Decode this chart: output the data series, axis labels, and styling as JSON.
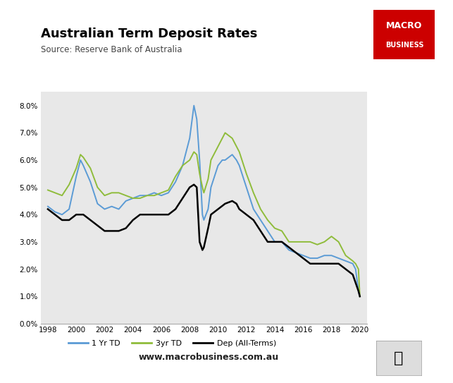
{
  "title": "Australian Term Deposit Rates",
  "subtitle": "Source: Reserve Bank of Australia",
  "watermark": "www.macrobusiness.com.au",
  "title_fontsize": 13,
  "subtitle_fontsize": 8.5,
  "bg_color": "#e8e8e8",
  "fig_bg_color": "#ffffff",
  "line_colors": {
    "1yr": "#5b9bd5",
    "3yr": "#8fbc3b",
    "dep": "#000000"
  },
  "legend_labels": [
    "1 Yr TD",
    "3yr TD",
    "Dep (All-Terms)"
  ],
  "ylim": [
    0.0,
    0.085
  ],
  "yticks": [
    0.0,
    0.01,
    0.02,
    0.03,
    0.04,
    0.05,
    0.06,
    0.07,
    0.08
  ],
  "ytick_labels": [
    "0.0%",
    "1.0%",
    "2.0%",
    "3.0%",
    "4.0%",
    "5.0%",
    "6.0%",
    "7.0%",
    "8.0%"
  ],
  "xticks": [
    1998,
    2000,
    2002,
    2004,
    2006,
    2008,
    2010,
    2012,
    2014,
    2016,
    2018,
    2020
  ],
  "xlim": [
    1997.5,
    2020.5
  ],
  "macro_box_color": "#cc0000",
  "macro_text_color": "#ffffff",
  "data_1yr": [
    [
      1998.0,
      0.043
    ],
    [
      1998.5,
      0.041
    ],
    [
      1999.0,
      0.04
    ],
    [
      1999.5,
      0.042
    ],
    [
      2000.0,
      0.054
    ],
    [
      2000.3,
      0.06
    ],
    [
      2000.5,
      0.058
    ],
    [
      2001.0,
      0.052
    ],
    [
      2001.5,
      0.044
    ],
    [
      2002.0,
      0.042
    ],
    [
      2002.5,
      0.043
    ],
    [
      2003.0,
      0.042
    ],
    [
      2003.5,
      0.045
    ],
    [
      2004.0,
      0.046
    ],
    [
      2004.5,
      0.047
    ],
    [
      2005.0,
      0.047
    ],
    [
      2005.5,
      0.048
    ],
    [
      2006.0,
      0.047
    ],
    [
      2006.5,
      0.048
    ],
    [
      2007.0,
      0.052
    ],
    [
      2007.5,
      0.058
    ],
    [
      2008.0,
      0.068
    ],
    [
      2008.3,
      0.08
    ],
    [
      2008.5,
      0.075
    ],
    [
      2008.7,
      0.06
    ],
    [
      2008.9,
      0.04
    ],
    [
      2009.0,
      0.038
    ],
    [
      2009.3,
      0.042
    ],
    [
      2009.5,
      0.05
    ],
    [
      2010.0,
      0.058
    ],
    [
      2010.3,
      0.06
    ],
    [
      2010.5,
      0.06
    ],
    [
      2011.0,
      0.062
    ],
    [
      2011.3,
      0.06
    ],
    [
      2011.5,
      0.058
    ],
    [
      2012.0,
      0.05
    ],
    [
      2012.5,
      0.042
    ],
    [
      2013.0,
      0.038
    ],
    [
      2013.5,
      0.034
    ],
    [
      2014.0,
      0.03
    ],
    [
      2014.5,
      0.03
    ],
    [
      2015.0,
      0.027
    ],
    [
      2015.5,
      0.026
    ],
    [
      2016.0,
      0.025
    ],
    [
      2016.5,
      0.024
    ],
    [
      2017.0,
      0.024
    ],
    [
      2017.5,
      0.025
    ],
    [
      2018.0,
      0.025
    ],
    [
      2018.5,
      0.024
    ],
    [
      2019.0,
      0.023
    ],
    [
      2019.5,
      0.022
    ],
    [
      2019.7,
      0.02
    ],
    [
      2019.9,
      0.012
    ],
    [
      2020.0,
      0.01
    ]
  ],
  "data_3yr": [
    [
      1998.0,
      0.049
    ],
    [
      1998.5,
      0.048
    ],
    [
      1999.0,
      0.047
    ],
    [
      1999.5,
      0.051
    ],
    [
      2000.0,
      0.057
    ],
    [
      2000.3,
      0.062
    ],
    [
      2000.5,
      0.061
    ],
    [
      2001.0,
      0.057
    ],
    [
      2001.5,
      0.05
    ],
    [
      2002.0,
      0.047
    ],
    [
      2002.5,
      0.048
    ],
    [
      2003.0,
      0.048
    ],
    [
      2003.5,
      0.047
    ],
    [
      2004.0,
      0.046
    ],
    [
      2004.5,
      0.046
    ],
    [
      2005.0,
      0.047
    ],
    [
      2005.5,
      0.047
    ],
    [
      2006.0,
      0.048
    ],
    [
      2006.5,
      0.049
    ],
    [
      2007.0,
      0.054
    ],
    [
      2007.5,
      0.058
    ],
    [
      2008.0,
      0.06
    ],
    [
      2008.3,
      0.063
    ],
    [
      2008.5,
      0.062
    ],
    [
      2008.7,
      0.055
    ],
    [
      2008.9,
      0.05
    ],
    [
      2009.0,
      0.048
    ],
    [
      2009.3,
      0.053
    ],
    [
      2009.5,
      0.06
    ],
    [
      2010.0,
      0.065
    ],
    [
      2010.3,
      0.068
    ],
    [
      2010.5,
      0.07
    ],
    [
      2011.0,
      0.068
    ],
    [
      2011.3,
      0.065
    ],
    [
      2011.5,
      0.063
    ],
    [
      2012.0,
      0.055
    ],
    [
      2012.5,
      0.048
    ],
    [
      2013.0,
      0.042
    ],
    [
      2013.5,
      0.038
    ],
    [
      2014.0,
      0.035
    ],
    [
      2014.5,
      0.034
    ],
    [
      2015.0,
      0.03
    ],
    [
      2015.5,
      0.03
    ],
    [
      2016.0,
      0.03
    ],
    [
      2016.5,
      0.03
    ],
    [
      2017.0,
      0.029
    ],
    [
      2017.5,
      0.03
    ],
    [
      2018.0,
      0.032
    ],
    [
      2018.5,
      0.03
    ],
    [
      2019.0,
      0.025
    ],
    [
      2019.5,
      0.023
    ],
    [
      2019.7,
      0.022
    ],
    [
      2019.9,
      0.02
    ],
    [
      2020.0,
      0.01
    ]
  ],
  "data_dep": [
    [
      1998.0,
      0.042
    ],
    [
      1998.5,
      0.04
    ],
    [
      1999.0,
      0.038
    ],
    [
      1999.5,
      0.038
    ],
    [
      2000.0,
      0.04
    ],
    [
      2000.5,
      0.04
    ],
    [
      2001.0,
      0.038
    ],
    [
      2001.5,
      0.036
    ],
    [
      2002.0,
      0.034
    ],
    [
      2002.5,
      0.034
    ],
    [
      2003.0,
      0.034
    ],
    [
      2003.5,
      0.035
    ],
    [
      2004.0,
      0.038
    ],
    [
      2004.5,
      0.04
    ],
    [
      2005.0,
      0.04
    ],
    [
      2005.5,
      0.04
    ],
    [
      2006.0,
      0.04
    ],
    [
      2006.5,
      0.04
    ],
    [
      2007.0,
      0.042
    ],
    [
      2007.5,
      0.046
    ],
    [
      2008.0,
      0.05
    ],
    [
      2008.3,
      0.051
    ],
    [
      2008.5,
      0.05
    ],
    [
      2008.7,
      0.03
    ],
    [
      2008.9,
      0.027
    ],
    [
      2009.0,
      0.028
    ],
    [
      2009.3,
      0.035
    ],
    [
      2009.5,
      0.04
    ],
    [
      2010.0,
      0.042
    ],
    [
      2010.5,
      0.044
    ],
    [
      2011.0,
      0.045
    ],
    [
      2011.3,
      0.044
    ],
    [
      2011.5,
      0.042
    ],
    [
      2012.0,
      0.04
    ],
    [
      2012.5,
      0.038
    ],
    [
      2013.0,
      0.034
    ],
    [
      2013.5,
      0.03
    ],
    [
      2014.0,
      0.03
    ],
    [
      2014.5,
      0.03
    ],
    [
      2015.0,
      0.028
    ],
    [
      2015.5,
      0.026
    ],
    [
      2016.0,
      0.024
    ],
    [
      2016.5,
      0.022
    ],
    [
      2017.0,
      0.022
    ],
    [
      2017.5,
      0.022
    ],
    [
      2018.0,
      0.022
    ],
    [
      2018.5,
      0.022
    ],
    [
      2019.0,
      0.02
    ],
    [
      2019.5,
      0.018
    ],
    [
      2019.7,
      0.015
    ],
    [
      2019.9,
      0.012
    ],
    [
      2020.0,
      0.01
    ]
  ]
}
